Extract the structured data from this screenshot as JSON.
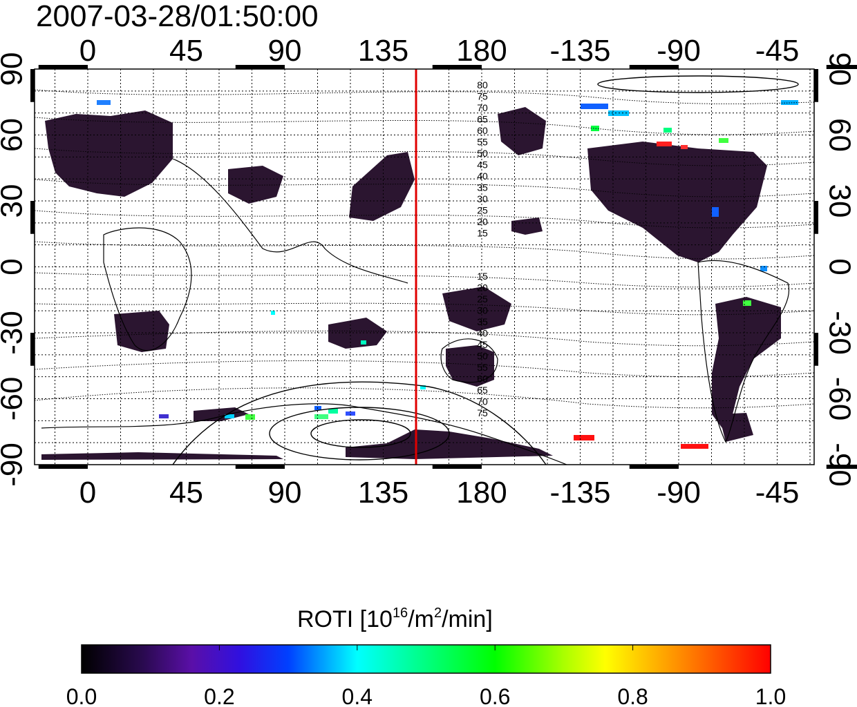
{
  "title": "2007-03-28/01:50:00",
  "map": {
    "projection": "cylindrical",
    "lon_center": 135,
    "lon_ticks_top": [
      "0",
      "45",
      "90",
      "135",
      "180",
      "-135",
      "-90",
      "-45"
    ],
    "lon_ticks_bottom": [
      "0",
      "45",
      "90",
      "135",
      "180",
      "-135",
      "-90",
      "-45"
    ],
    "lat_ticks_left": [
      "90",
      "60",
      "30",
      "0",
      "-30",
      "-60",
      "-90"
    ],
    "lat_ticks_right": [
      "90",
      "60",
      "30",
      "0",
      "-30",
      "-60",
      "-90"
    ],
    "grid": true,
    "meridian_line": {
      "lon": 150,
      "color": "#e00000"
    },
    "contour_labels_north": [
      "80",
      "75",
      "70",
      "65",
      "60",
      "55",
      "50",
      "45",
      "40",
      "35",
      "30",
      "25",
      "20",
      "15"
    ],
    "contour_labels_south": [
      "15",
      "20",
      "25",
      "30",
      "35",
      "40",
      "45",
      "50",
      "55",
      "60",
      "65",
      "70",
      "75"
    ]
  },
  "colorbar": {
    "title_main": "ROTI  [10",
    "title_sup1": "16",
    "title_mid": "/m",
    "title_sup2": "2",
    "title_end": "/min]",
    "ticks": [
      "0.0",
      "0.2",
      "0.4",
      "0.6",
      "0.8",
      "1.0"
    ],
    "range": [
      0.0,
      1.0
    ],
    "colors": [
      "#000000",
      "#3a0a6e",
      "#5a0fa8",
      "#0000ff",
      "#00a0ff",
      "#00ffff",
      "#00ff80",
      "#00ff00",
      "#a0ff00",
      "#ffff00",
      "#ff9000",
      "#ff0000"
    ]
  }
}
